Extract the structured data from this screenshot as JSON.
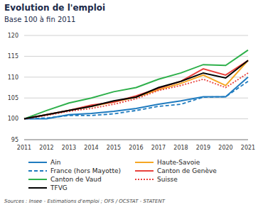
{
  "chart_data": {
    "type": "line",
    "title": "Evolution de l'emploi",
    "subtitle": "Base 100 à fin 2011",
    "source": "Sources : Insee - Estimations d'emploi ; OFS / OCSTAT - STATENT",
    "categories": [
      "2011",
      "2012",
      "2013",
      "2014",
      "2015",
      "2016",
      "2017",
      "2018",
      "2019",
      "2020",
      "2021"
    ],
    "ylim": [
      95,
      120
    ],
    "yticks": [
      95,
      100,
      105,
      110,
      115,
      120
    ],
    "grid": true,
    "legend": "bottom",
    "series": [
      {
        "name": "Ain",
        "color": "#1f7bbf",
        "line_style": "solid",
        "values": [
          100,
          100,
          101,
          101.3,
          101.8,
          102.5,
          103.5,
          104.3,
          105.3,
          105.3,
          110
        ]
      },
      {
        "name": "Haute-Savoie",
        "color": "#f5a623",
        "line_style": "solid",
        "values": [
          100,
          101,
          102,
          103,
          104,
          105.2,
          107,
          108.5,
          110.5,
          108,
          114
        ]
      },
      {
        "name": "France (hors Mayotte)",
        "color": "#1f7bbf",
        "line_style": "dashed",
        "values": [
          100,
          100.2,
          100.8,
          100.8,
          101.2,
          102,
          103,
          103.5,
          105.2,
          105.3,
          109
        ]
      },
      {
        "name": "Canton de Genève",
        "color": "#e8413c",
        "line_style": "solid",
        "values": [
          100,
          101,
          102,
          103.3,
          104,
          105.5,
          107.3,
          109,
          112,
          110.5,
          114
        ]
      },
      {
        "name": "Canton de Vaud",
        "color": "#2eb04b",
        "line_style": "solid",
        "values": [
          100,
          102,
          103.8,
          105,
          106.5,
          107.5,
          109.5,
          111,
          113,
          112.8,
          116.5
        ]
      },
      {
        "name": "Suisse",
        "color": "#e8413c",
        "line_style": "dotted",
        "values": [
          100,
          100.8,
          101.8,
          102.5,
          103.5,
          104.8,
          106.8,
          108,
          109.5,
          107.5,
          111
        ]
      },
      {
        "name": "TFVG",
        "color": "#000000",
        "line_style": "solid",
        "values": [
          100,
          101,
          102,
          103,
          104.3,
          105.2,
          107.5,
          109,
          111,
          109.8,
          114
        ]
      }
    ]
  }
}
